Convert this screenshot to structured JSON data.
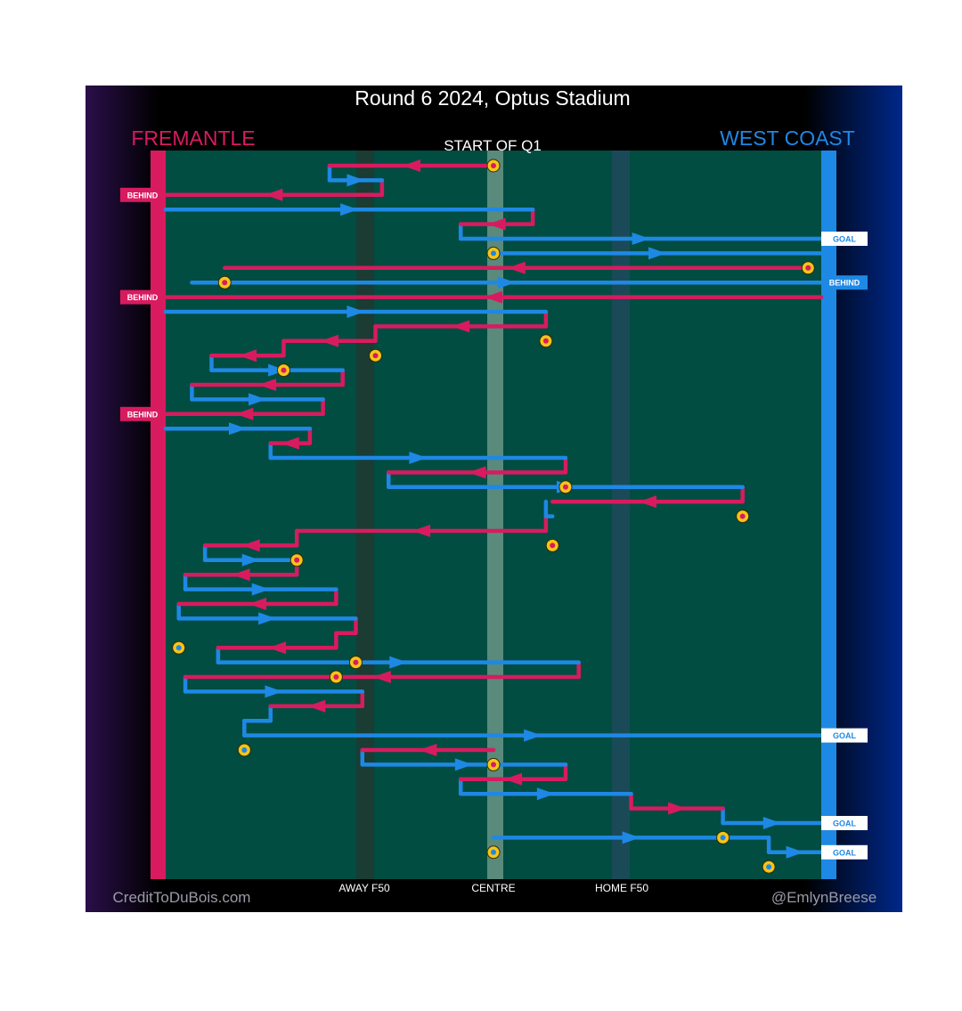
{
  "chart_data": {
    "type": "line",
    "title": "Round 6 2024, Optus Stadium",
    "subtitle": "START OF Q1",
    "teams": {
      "left": {
        "name": "FREMANTLE",
        "color": "#d81b5f"
      },
      "right": {
        "name": "WEST COAST",
        "color": "#1e88e5"
      }
    },
    "field_labels": [
      "AWAY F50",
      "CENTRE",
      "HOME F50"
    ],
    "credits": {
      "left": "CreditToDuBois.com",
      "right": "@EmlynBreese"
    },
    "colors": {
      "fremantle": "#d81b5f",
      "west_coast": "#1e88e5",
      "field": "#014d41",
      "marker": "#f5c518"
    },
    "outcome_labels": {
      "behind": "BEHIND",
      "goal": "GOAL"
    },
    "chains": [
      {
        "team": "fremantle",
        "x": [
          0.5,
          0.25
        ]
      },
      {
        "team": "west_coast",
        "x": [
          0.25,
          0.33
        ]
      },
      {
        "team": "fremantle",
        "x": [
          0.33,
          0.0
        ],
        "outcome": "behind"
      },
      {
        "team": "west_coast",
        "x": [
          0.0,
          0.56
        ]
      },
      {
        "team": "fremantle",
        "x": [
          0.56,
          0.45
        ]
      },
      {
        "team": "west_coast",
        "x": [
          0.45,
          1.0
        ],
        "outcome": "goal"
      },
      {
        "team": "west_coast",
        "x": [
          0.5,
          1.0
        ]
      },
      {
        "team": "fremantle",
        "x": [
          0.98,
          0.09
        ]
      },
      {
        "team": "west_coast",
        "x": [
          0.04,
          1.0
        ],
        "outcome": "behind"
      },
      {
        "team": "fremantle",
        "x": [
          1.0,
          0.0
        ],
        "outcome": "behind"
      },
      {
        "team": "west_coast",
        "x": [
          0.0,
          0.58
        ]
      },
      {
        "team": "fremantle",
        "x": [
          0.58,
          0.32
        ]
      },
      {
        "team": "fremantle",
        "x": [
          0.32,
          0.18
        ]
      },
      {
        "team": "fremantle",
        "x": [
          0.18,
          0.07
        ]
      },
      {
        "team": "west_coast",
        "x": [
          0.07,
          0.27
        ]
      },
      {
        "team": "fremantle",
        "x": [
          0.27,
          0.04
        ]
      },
      {
        "team": "west_coast",
        "x": [
          0.04,
          0.24
        ]
      },
      {
        "team": "fremantle",
        "x": [
          0.24,
          0.0
        ],
        "outcome": "behind"
      },
      {
        "team": "west_coast",
        "x": [
          0.0,
          0.22
        ]
      },
      {
        "team": "fremantle",
        "x": [
          0.22,
          0.16
        ]
      },
      {
        "team": "west_coast",
        "x": [
          0.16,
          0.61
        ]
      },
      {
        "team": "fremantle",
        "x": [
          0.61,
          0.34
        ]
      },
      {
        "team": "west_coast",
        "x": [
          0.34,
          0.88
        ]
      },
      {
        "team": "fremantle",
        "x": [
          0.88,
          0.59
        ]
      },
      {
        "team": "west_coast",
        "x": [
          0.58,
          0.59
        ]
      },
      {
        "team": "fremantle",
        "x": [
          0.58,
          0.2
        ]
      },
      {
        "team": "fremantle",
        "x": [
          0.2,
          0.06
        ]
      },
      {
        "team": "west_coast",
        "x": [
          0.06,
          0.2
        ]
      },
      {
        "team": "fremantle",
        "x": [
          0.2,
          0.03
        ]
      },
      {
        "team": "west_coast",
        "x": [
          0.03,
          0.26
        ]
      },
      {
        "team": "fremantle",
        "x": [
          0.26,
          0.02
        ]
      },
      {
        "team": "west_coast",
        "x": [
          0.02,
          0.29
        ]
      },
      {
        "team": "fremantle",
        "x": [
          0.29,
          0.26
        ]
      },
      {
        "team": "fremantle",
        "x": [
          0.26,
          0.08
        ]
      },
      {
        "team": "west_coast",
        "x": [
          0.08,
          0.63
        ]
      },
      {
        "team": "fremantle",
        "x": [
          0.63,
          0.03
        ]
      },
      {
        "team": "west_coast",
        "x": [
          0.03,
          0.3
        ]
      },
      {
        "team": "fremantle",
        "x": [
          0.3,
          0.16
        ]
      },
      {
        "team": "west_coast",
        "x": [
          0.16,
          0.12
        ]
      },
      {
        "team": "west_coast",
        "x": [
          0.12,
          1.0
        ],
        "outcome": "goal"
      },
      {
        "team": "fremantle",
        "x": [
          0.5,
          0.3
        ]
      },
      {
        "team": "west_coast",
        "x": [
          0.3,
          0.61
        ]
      },
      {
        "team": "fremantle",
        "x": [
          0.61,
          0.45
        ]
      },
      {
        "team": "west_coast",
        "x": [
          0.45,
          0.71
        ]
      },
      {
        "team": "fremantle",
        "x": [
          0.71,
          0.85
        ]
      },
      {
        "team": "west_coast",
        "x": [
          0.85,
          1.0
        ],
        "outcome": "goal"
      },
      {
        "team": "west_coast",
        "x": [
          0.5,
          0.92
        ]
      },
      {
        "team": "west_coast",
        "x": [
          0.92,
          1.0
        ],
        "outcome": "goal"
      }
    ],
    "markers": [
      {
        "team": "fremantle",
        "x": 0.5,
        "row": 0
      },
      {
        "team": "west_coast",
        "x": 0.5,
        "row": 6
      },
      {
        "team": "fremantle",
        "x": 0.98,
        "row": 7
      },
      {
        "team": "fremantle",
        "x": 0.09,
        "row": 8
      },
      {
        "team": "fremantle",
        "x": 0.58,
        "row": 12
      },
      {
        "team": "fremantle",
        "x": 0.32,
        "row": 13
      },
      {
        "team": "fremantle",
        "x": 0.18,
        "row": 14
      },
      {
        "team": "fremantle",
        "x": 0.61,
        "row": 22
      },
      {
        "team": "fremantle",
        "x": 0.88,
        "row": 24
      },
      {
        "team": "fremantle",
        "x": 0.59,
        "row": 26
      },
      {
        "team": "fremantle",
        "x": 0.2,
        "row": 27
      },
      {
        "team": "west_coast",
        "x": 0.02,
        "row": 33
      },
      {
        "team": "fremantle",
        "x": 0.29,
        "row": 34
      },
      {
        "team": "fremantle",
        "x": 0.26,
        "row": 35
      },
      {
        "team": "west_coast",
        "x": 0.12,
        "row": 40
      },
      {
        "team": "fremantle",
        "x": 0.5,
        "row": 41
      },
      {
        "team": "west_coast",
        "x": 0.85,
        "row": 46
      },
      {
        "team": "west_coast",
        "x": 0.5,
        "row": 47
      },
      {
        "team": "west_coast",
        "x": 0.92,
        "row": 48
      }
    ]
  }
}
